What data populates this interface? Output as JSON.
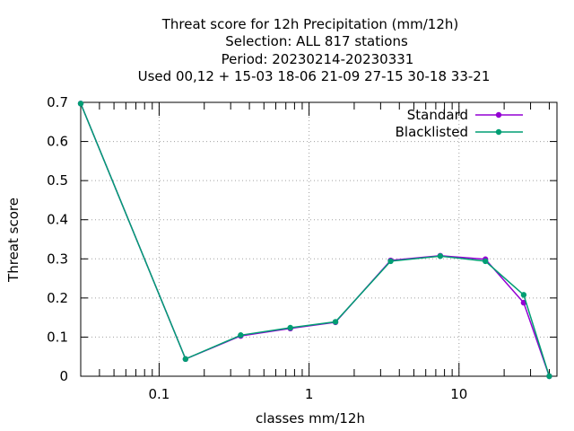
{
  "chart_data": {
    "type": "line",
    "title_lines": [
      "Threat score  for 12h Precipitation (mm/12h)",
      "Selection: ALL    817 stations",
      "Period: 20230214-20230331",
      "Used  00,12  + 15-03 18-06 21-09 27-15 30-18 33-21"
    ],
    "xlabel": "classes mm/12h",
    "ylabel": "Threat score",
    "xscale": "log",
    "xlim": [
      0.03,
      45
    ],
    "ylim": [
      0,
      0.7
    ],
    "x_ticks": [
      {
        "value": 0.1,
        "label": "0.1"
      },
      {
        "value": 1,
        "label": "1"
      },
      {
        "value": 10,
        "label": "10"
      }
    ],
    "y_ticks": [
      {
        "value": 0,
        "label": "0"
      },
      {
        "value": 0.1,
        "label": "0.1"
      },
      {
        "value": 0.2,
        "label": "0.2"
      },
      {
        "value": 0.3,
        "label": "0.3"
      },
      {
        "value": 0.4,
        "label": "0.4"
      },
      {
        "value": 0.5,
        "label": "0.5"
      },
      {
        "value": 0.6,
        "label": "0.6"
      },
      {
        "value": 0.7,
        "label": "0.7"
      }
    ],
    "grid": true,
    "legend_position": "top-right",
    "series": [
      {
        "name": "Standard",
        "color": "#9400d3",
        "x": [
          0.03,
          0.15,
          0.35,
          0.75,
          1.5,
          3.5,
          7.5,
          15,
          27,
          40
        ],
        "y": [
          0.697,
          0.044,
          0.103,
          0.122,
          0.138,
          0.296,
          0.308,
          0.299,
          0.188,
          0.0
        ]
      },
      {
        "name": "Blacklisted",
        "color": "#009e73",
        "x": [
          0.03,
          0.15,
          0.35,
          0.75,
          1.5,
          3.5,
          7.5,
          15,
          27,
          40
        ],
        "y": [
          0.697,
          0.044,
          0.105,
          0.124,
          0.139,
          0.294,
          0.307,
          0.294,
          0.208,
          0.0
        ]
      }
    ]
  }
}
